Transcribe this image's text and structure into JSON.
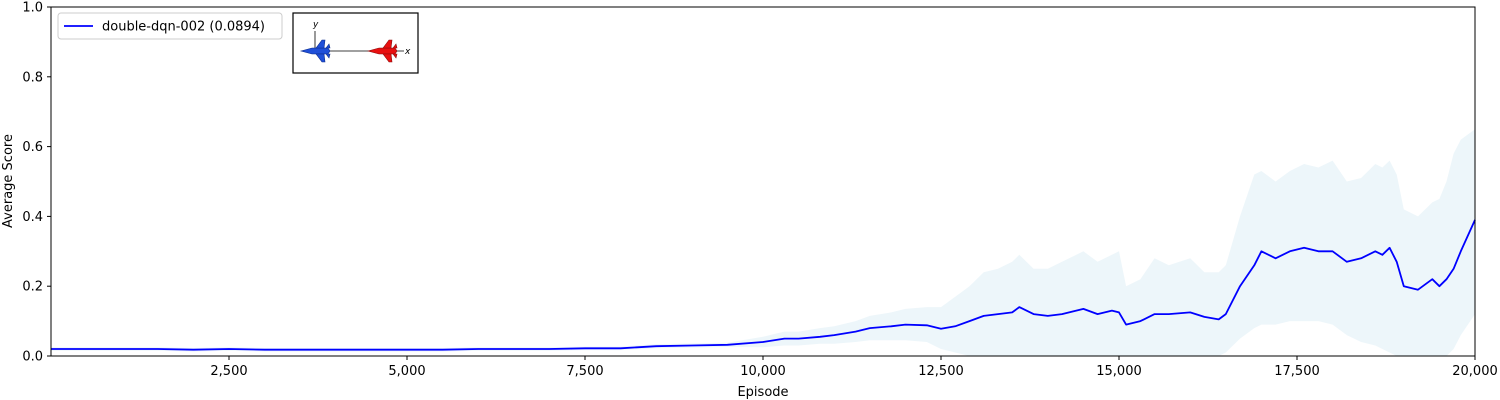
{
  "chart_data": {
    "type": "line",
    "title": "",
    "xlabel": "Episode",
    "ylabel": "Average Score",
    "xlim": [
      0,
      20000
    ],
    "ylim": [
      0.0,
      1.0
    ],
    "xticks": [
      2500,
      5000,
      7500,
      10000,
      12500,
      15000,
      17500,
      20000
    ],
    "xtick_labels": [
      "2,500",
      "5,000",
      "7,500",
      "10,000",
      "12,500",
      "15,000",
      "17,500",
      "20,000"
    ],
    "yticks": [
      0.0,
      0.2,
      0.4,
      0.6,
      0.8,
      1.0
    ],
    "ytick_labels": [
      "0.0",
      "0.2",
      "0.4",
      "0.6",
      "0.8",
      "1.0"
    ],
    "grid": false,
    "legend_position": "top-left",
    "colors": {
      "line": "#0000ff",
      "band": "#add8e6"
    },
    "series": [
      {
        "name": "double-dqn-002 (0.0894)",
        "x": [
          0,
          500,
          1000,
          1500,
          2000,
          2500,
          3000,
          3500,
          4000,
          4500,
          5000,
          5500,
          6000,
          6500,
          7000,
          7500,
          8000,
          8500,
          9000,
          9500,
          10000,
          10300,
          10500,
          10800,
          11000,
          11300,
          11500,
          11800,
          12000,
          12300,
          12500,
          12700,
          12900,
          13100,
          13300,
          13500,
          13600,
          13800,
          14000,
          14200,
          14500,
          14700,
          14900,
          15000,
          15100,
          15300,
          15500,
          15700,
          16000,
          16200,
          16400,
          16500,
          16700,
          16900,
          17000,
          17200,
          17400,
          17600,
          17800,
          18000,
          18200,
          18400,
          18600,
          18700,
          18800,
          18900,
          19000,
          19200,
          19400,
          19500,
          19600,
          19700,
          19800,
          20000
        ],
        "values": [
          0.02,
          0.02,
          0.02,
          0.02,
          0.018,
          0.02,
          0.018,
          0.018,
          0.018,
          0.018,
          0.018,
          0.018,
          0.02,
          0.02,
          0.02,
          0.022,
          0.022,
          0.028,
          0.03,
          0.032,
          0.04,
          0.05,
          0.05,
          0.055,
          0.06,
          0.07,
          0.08,
          0.085,
          0.09,
          0.088,
          0.078,
          0.085,
          0.1,
          0.115,
          0.12,
          0.125,
          0.14,
          0.12,
          0.115,
          0.12,
          0.135,
          0.12,
          0.13,
          0.125,
          0.09,
          0.1,
          0.12,
          0.12,
          0.125,
          0.112,
          0.105,
          0.12,
          0.2,
          0.26,
          0.3,
          0.28,
          0.3,
          0.31,
          0.3,
          0.3,
          0.27,
          0.28,
          0.3,
          0.29,
          0.31,
          0.27,
          0.2,
          0.19,
          0.22,
          0.2,
          0.22,
          0.25,
          0.3,
          0.39
        ],
        "lower": [
          0.015,
          0.015,
          0.015,
          0.015,
          0.013,
          0.015,
          0.013,
          0.013,
          0.013,
          0.013,
          0.013,
          0.013,
          0.015,
          0.015,
          0.015,
          0.017,
          0.017,
          0.022,
          0.024,
          0.026,
          0.025,
          0.03,
          0.03,
          0.035,
          0.035,
          0.04,
          0.045,
          0.045,
          0.045,
          0.04,
          0.02,
          0.01,
          0.0,
          0.0,
          0.0,
          0.0,
          0.0,
          0.0,
          0.0,
          0.0,
          0.0,
          0.0,
          0.0,
          0.0,
          0.0,
          0.0,
          0.0,
          0.0,
          0.0,
          0.0,
          0.0,
          0.01,
          0.05,
          0.08,
          0.09,
          0.09,
          0.1,
          0.1,
          0.1,
          0.09,
          0.06,
          0.04,
          0.03,
          0.02,
          0.01,
          0.0,
          0.0,
          0.0,
          0.0,
          0.0,
          0.0,
          0.02,
          0.06,
          0.12
        ],
        "upper": [
          0.025,
          0.025,
          0.025,
          0.025,
          0.023,
          0.025,
          0.023,
          0.023,
          0.023,
          0.023,
          0.023,
          0.023,
          0.025,
          0.025,
          0.025,
          0.027,
          0.027,
          0.034,
          0.036,
          0.038,
          0.055,
          0.07,
          0.07,
          0.08,
          0.085,
          0.1,
          0.115,
          0.125,
          0.135,
          0.14,
          0.14,
          0.17,
          0.2,
          0.24,
          0.25,
          0.27,
          0.29,
          0.25,
          0.25,
          0.27,
          0.3,
          0.27,
          0.29,
          0.3,
          0.2,
          0.22,
          0.28,
          0.26,
          0.28,
          0.24,
          0.24,
          0.26,
          0.4,
          0.52,
          0.53,
          0.5,
          0.53,
          0.55,
          0.54,
          0.56,
          0.5,
          0.51,
          0.55,
          0.54,
          0.56,
          0.52,
          0.42,
          0.4,
          0.44,
          0.45,
          0.5,
          0.58,
          0.62,
          0.65
        ]
      }
    ],
    "inset": {
      "y_label": "y",
      "x_label": "x",
      "colors": {
        "left_jet": "#1f4fd8",
        "right_jet": "#e81010"
      }
    }
  }
}
